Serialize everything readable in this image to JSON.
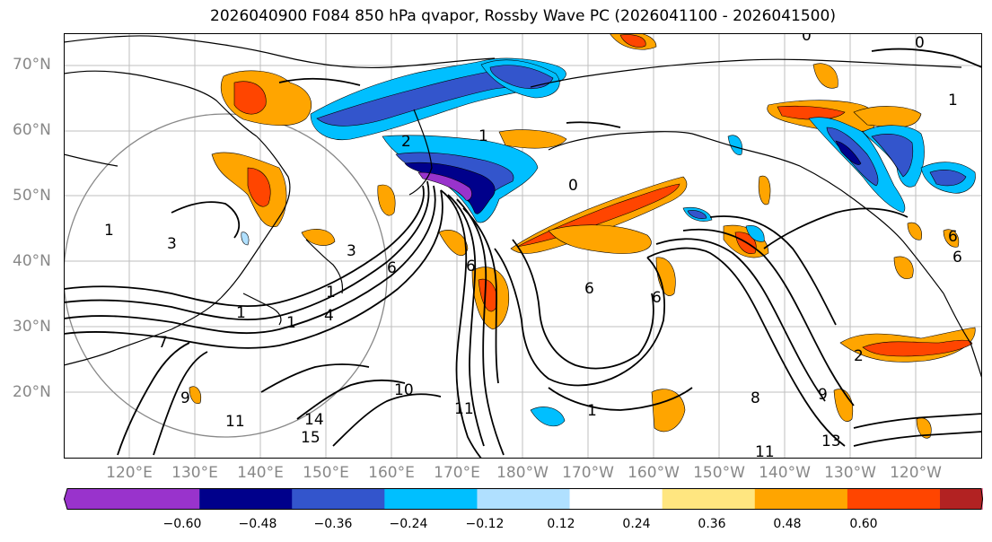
{
  "title": "2026040900 F084 850 hPa qvapor, Rossby Wave PC (2026041100 - 2026041500)",
  "lat_labels": [
    "70°N",
    "60°N",
    "50°N",
    "40°N",
    "30°N",
    "20°N"
  ],
  "lon_labels": [
    "120°E",
    "130°E",
    "140°E",
    "150°E",
    "160°E",
    "170°E",
    "180°W",
    "170°W",
    "160°W",
    "150°W",
    "140°W",
    "130°W",
    "120°W"
  ],
  "colorbar": {
    "colors": [
      "#9933cc",
      "#00008b",
      "#3355cc",
      "#00bfff",
      "#b0e0ff",
      "#ffffff",
      "#ffe680",
      "#ffa500",
      "#ff4500",
      "#b22222",
      "#ff88aa"
    ],
    "tick_labels": [
      "−0.60",
      "−0.48",
      "−0.36",
      "−0.24",
      "−0.12",
      "0.12",
      "0.24",
      "0.36",
      "0.48",
      "0.60"
    ]
  },
  "contour_labels": [
    "0",
    "0",
    "0",
    "1",
    "1",
    "1",
    "1",
    "1",
    "1",
    "1",
    "2",
    "2",
    "3",
    "3",
    "4",
    "6",
    "6",
    "6",
    "6",
    "6",
    "6",
    "7",
    "8",
    "9",
    "9",
    "10",
    "11",
    "11",
    "11",
    "13",
    "14",
    "15"
  ]
}
